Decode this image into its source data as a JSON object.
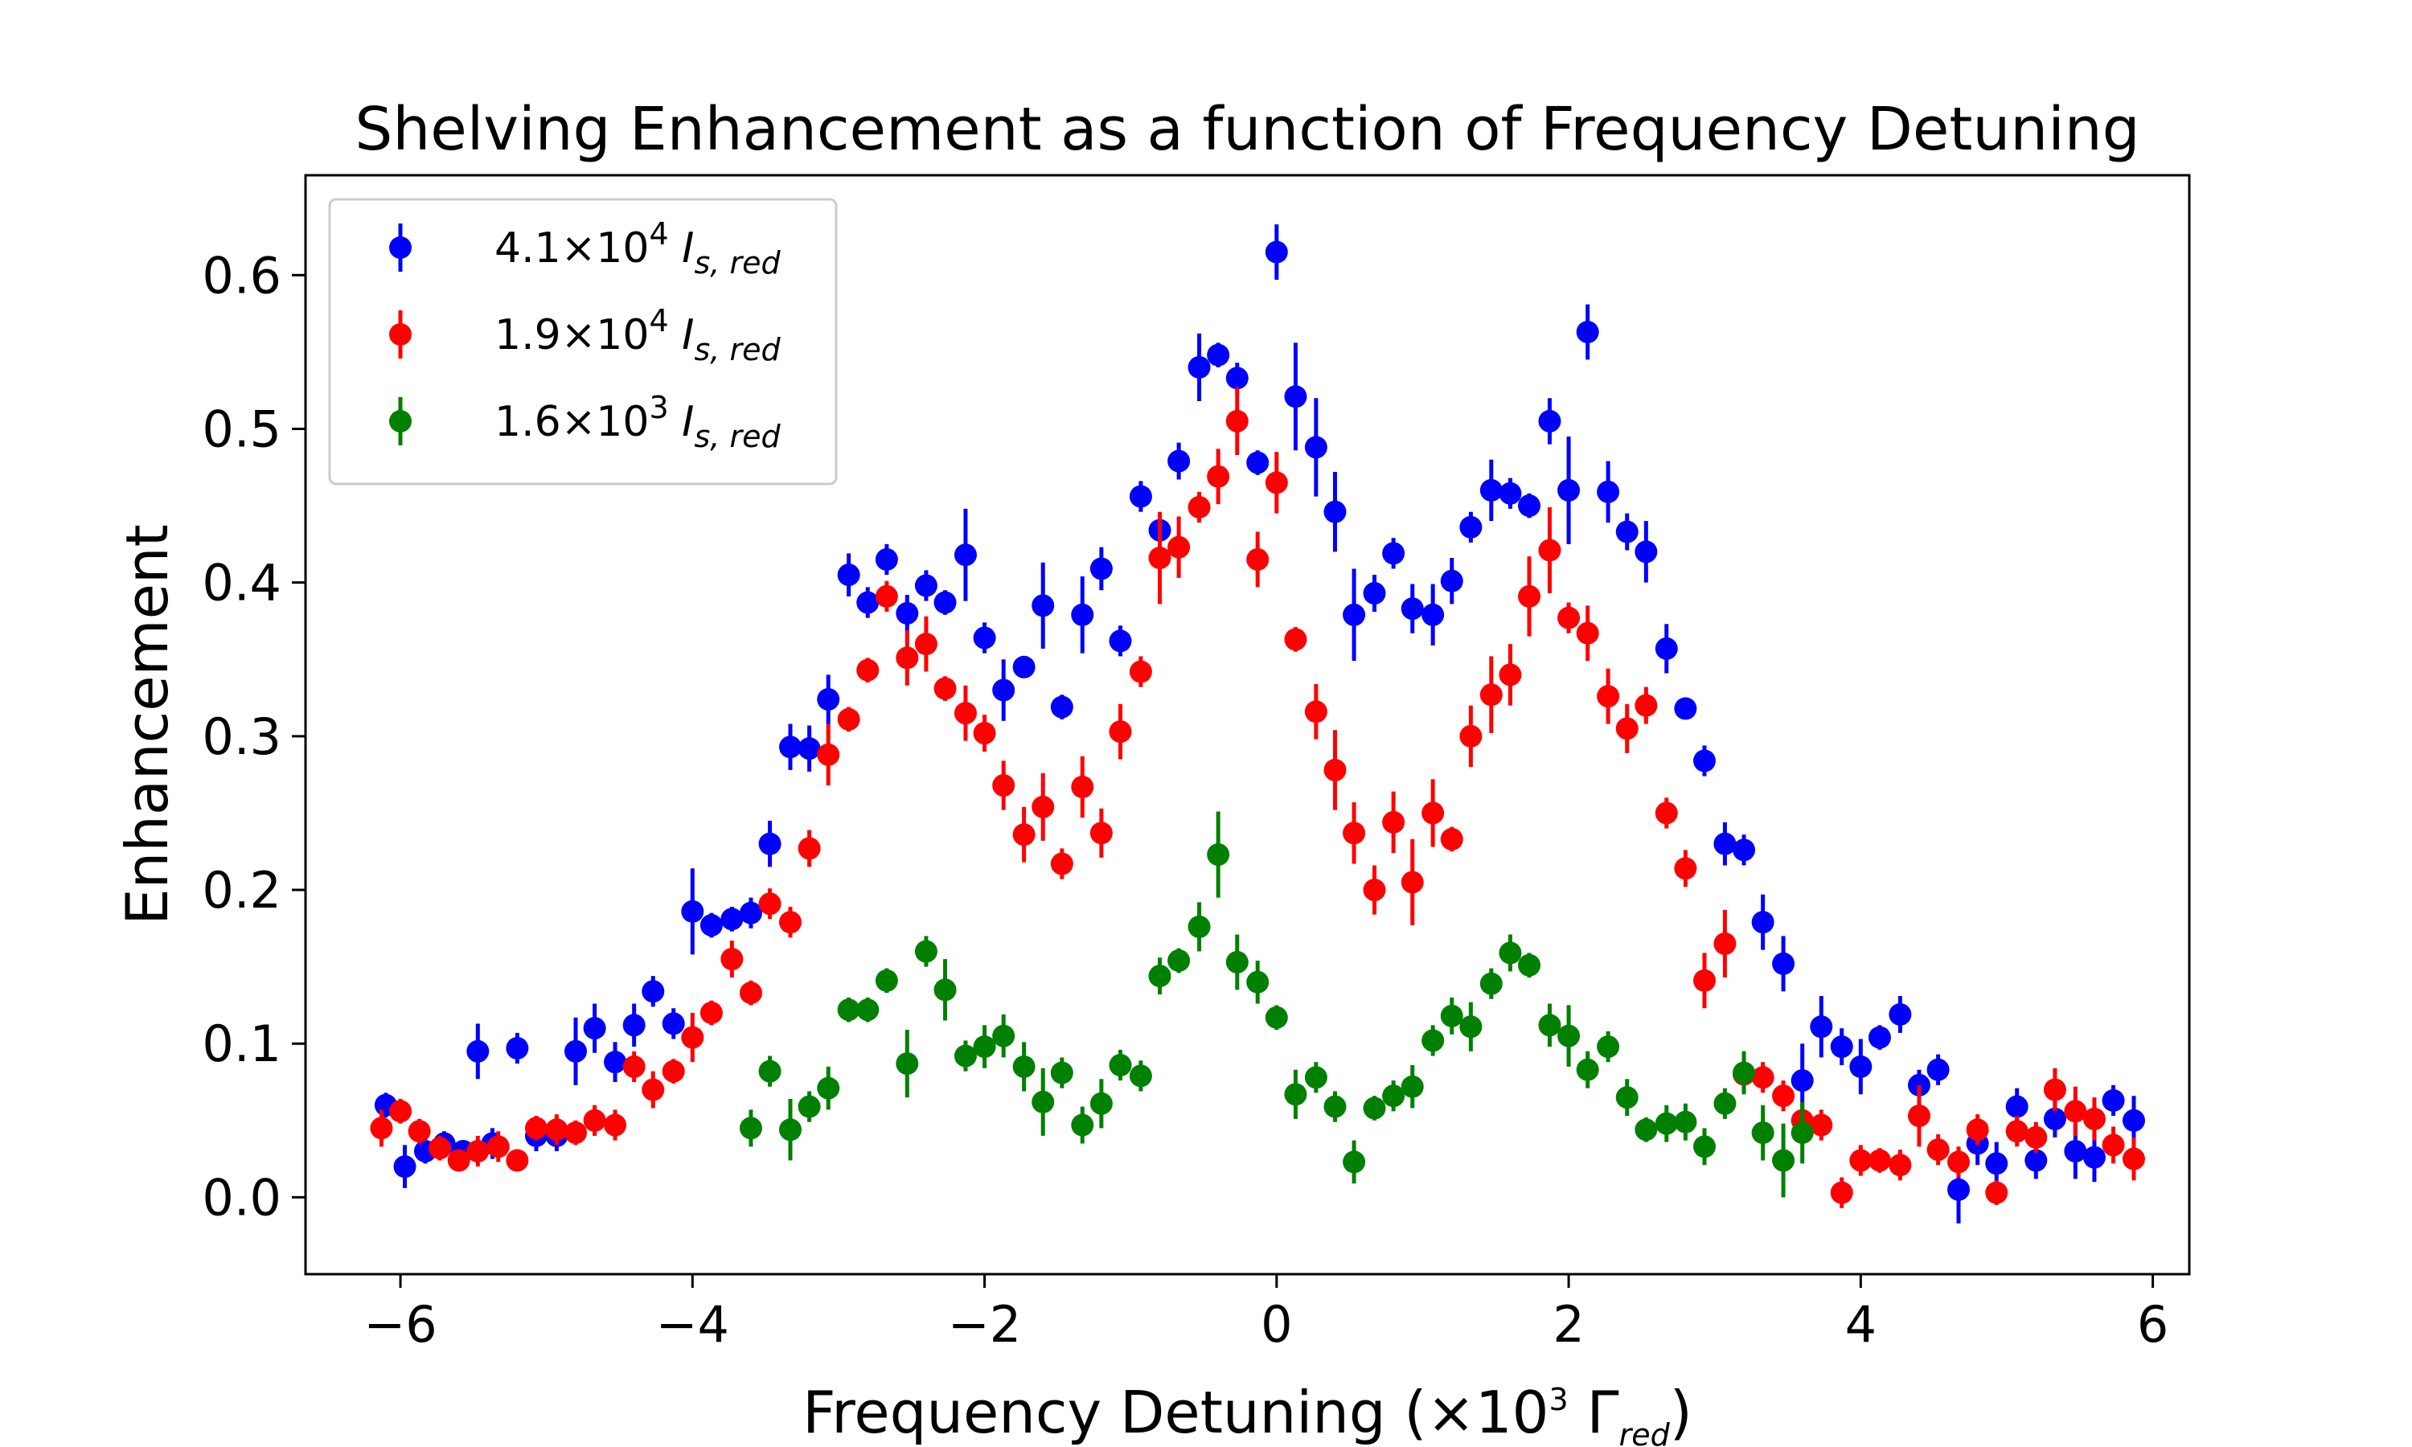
{
  "chart_data": {
    "type": "scatter",
    "title": "Shelving Enhancement as a function of Frequency Detuning",
    "xlabel": {
      "main": "Frequency Detuning (×10",
      "exp": "3",
      "gamma": " Γ",
      "sub": "red",
      "close": ")"
    },
    "ylabel": "Enhancement",
    "xlim": [
      -6.65,
      6.25
    ],
    "ylim": [
      -0.05,
      0.665
    ],
    "xticks": [
      -6,
      -4,
      -2,
      0,
      2,
      4,
      6
    ],
    "xtick_labels": [
      "−6",
      "−4",
      "−2",
      "0",
      "2",
      "4",
      "6"
    ],
    "yticks": [
      0.0,
      0.1,
      0.2,
      0.3,
      0.4,
      0.5,
      0.6
    ],
    "ytick_labels": [
      "0.0",
      "0.1",
      "0.2",
      "0.3",
      "0.4",
      "0.5",
      "0.6"
    ],
    "grid": false,
    "legend_position": "top-left",
    "series": [
      {
        "name": "4.1×10^4 I_s,red",
        "legend": {
          "mant": "4.1×10",
          "exp": "4",
          "sym": "I",
          "sub": "s, red"
        },
        "color": "#0000ff",
        "x": [
          -6.1,
          -5.97,
          -5.83,
          -5.7,
          -5.57,
          -5.47,
          -5.37,
          -5.2,
          -5.07,
          -4.93,
          -4.8,
          -4.67,
          -4.53,
          -4.4,
          -4.27,
          -4.13,
          -4.0,
          -3.87,
          -3.73,
          -3.6,
          -3.47,
          -3.33,
          -3.2,
          -3.07,
          -2.93,
          -2.8,
          -2.67,
          -2.53,
          -2.4,
          -2.27,
          -2.13,
          -2.0,
          -1.87,
          -1.73,
          -1.6,
          -1.47,
          -1.33,
          -1.2,
          -1.07,
          -0.93,
          -0.8,
          -0.67,
          -0.53,
          -0.4,
          -0.27,
          -0.13,
          0.0,
          0.13,
          0.27,
          0.4,
          0.53,
          0.67,
          0.8,
          0.93,
          1.07,
          1.2,
          1.33,
          1.47,
          1.6,
          1.73,
          1.87,
          2.0,
          2.13,
          2.27,
          2.4,
          2.53,
          2.67,
          2.8,
          2.93,
          3.07,
          3.2,
          3.33,
          3.47,
          3.6,
          3.73,
          3.87,
          4.0,
          4.13,
          4.27,
          4.4,
          4.53,
          4.67,
          4.8,
          4.93,
          5.07,
          5.2,
          5.33,
          5.47,
          5.6,
          5.73,
          5.87
        ],
        "y": [
          0.06,
          0.02,
          0.03,
          0.035,
          0.03,
          0.095,
          0.035,
          0.097,
          0.04,
          0.04,
          0.095,
          0.11,
          0.088,
          0.112,
          0.134,
          0.113,
          0.186,
          0.177,
          0.181,
          0.185,
          0.23,
          0.293,
          0.292,
          0.324,
          0.405,
          0.387,
          0.415,
          0.38,
          0.398,
          0.387,
          0.418,
          0.364,
          0.33,
          0.345,
          0.385,
          0.319,
          0.379,
          0.409,
          0.362,
          0.456,
          0.434,
          0.479,
          0.54,
          0.548,
          0.533,
          0.478,
          0.615,
          0.521,
          0.488,
          0.446,
          0.379,
          0.393,
          0.419,
          0.383,
          0.379,
          0.401,
          0.436,
          0.46,
          0.458,
          0.45,
          0.505,
          0.46,
          0.563,
          0.459,
          0.433,
          0.42,
          0.357,
          0.318,
          0.284,
          0.23,
          0.226,
          0.179,
          0.152,
          0.076,
          0.111,
          0.098,
          0.085,
          0.104,
          0.119,
          0.073,
          0.083,
          0.005,
          0.035,
          0.022,
          0.059,
          0.024,
          0.051,
          0.03,
          0.026,
          0.063,
          0.05
        ],
        "err": [
          0.008,
          0.014,
          0.008,
          0.008,
          0.007,
          0.018,
          0.01,
          0.01,
          0.01,
          0.01,
          0.022,
          0.016,
          0.013,
          0.014,
          0.01,
          0.01,
          0.028,
          0.008,
          0.008,
          0.01,
          0.015,
          0.015,
          0.015,
          0.016,
          0.014,
          0.01,
          0.01,
          0.012,
          0.01,
          0.008,
          0.03,
          0.01,
          0.02,
          0.007,
          0.028,
          0.008,
          0.025,
          0.014,
          0.01,
          0.01,
          0.01,
          0.012,
          0.022,
          0.008,
          0.01,
          0.008,
          0.018,
          0.035,
          0.032,
          0.026,
          0.03,
          0.012,
          0.01,
          0.016,
          0.02,
          0.015,
          0.01,
          0.02,
          0.01,
          0.008,
          0.015,
          0.035,
          0.018,
          0.02,
          0.012,
          0.02,
          0.016,
          0.007,
          0.01,
          0.014,
          0.01,
          0.018,
          0.018,
          0.024,
          0.02,
          0.012,
          0.018,
          0.008,
          0.012,
          0.01,
          0.01,
          0.022,
          0.014,
          0.014,
          0.012,
          0.012,
          0.012,
          0.018,
          0.016,
          0.01,
          0.016
        ]
      },
      {
        "name": "1.9×10^4 I_s,red",
        "legend": {
          "mant": "1.9×10",
          "exp": "4",
          "sym": "I",
          "sub": "s, red"
        },
        "color": "#ff0000",
        "x": [
          -6.13,
          -6.0,
          -5.87,
          -5.73,
          -5.6,
          -5.47,
          -5.33,
          -5.2,
          -5.07,
          -4.93,
          -4.8,
          -4.67,
          -4.53,
          -4.4,
          -4.27,
          -4.13,
          -4.0,
          -3.87,
          -3.73,
          -3.6,
          -3.47,
          -3.33,
          -3.2,
          -3.07,
          -2.93,
          -2.8,
          -2.67,
          -2.53,
          -2.4,
          -2.27,
          -2.13,
          -2.0,
          -1.87,
          -1.73,
          -1.6,
          -1.47,
          -1.33,
          -1.2,
          -1.07,
          -0.93,
          -0.8,
          -0.67,
          -0.53,
          -0.4,
          -0.27,
          -0.13,
          0.0,
          0.13,
          0.27,
          0.4,
          0.53,
          0.67,
          0.8,
          0.93,
          1.07,
          1.2,
          1.33,
          1.47,
          1.6,
          1.73,
          1.87,
          2.0,
          2.13,
          2.27,
          2.4,
          2.53,
          2.67,
          2.8,
          2.93,
          3.07,
          3.2,
          3.33,
          3.47,
          3.6,
          3.73,
          3.87,
          4.0,
          4.13,
          4.27,
          4.4,
          4.53,
          4.67,
          4.8,
          4.93,
          5.07,
          5.2,
          5.33,
          5.47,
          5.6,
          5.73,
          5.87
        ],
        "y": [
          0.045,
          0.056,
          0.043,
          0.032,
          0.024,
          0.03,
          0.033,
          0.024,
          0.045,
          0.044,
          0.042,
          0.05,
          0.047,
          0.085,
          0.07,
          0.082,
          0.104,
          0.12,
          0.155,
          0.133,
          0.191,
          0.179,
          0.227,
          0.288,
          0.311,
          0.343,
          0.391,
          0.351,
          0.36,
          0.331,
          0.315,
          0.302,
          0.268,
          0.236,
          0.254,
          0.217,
          0.267,
          0.237,
          0.303,
          0.342,
          0.416,
          0.423,
          0.449,
          0.469,
          0.505,
          0.415,
          0.465,
          0.363,
          0.316,
          0.278,
          0.237,
          0.2,
          0.244,
          0.205,
          0.25,
          0.233,
          0.3,
          0.327,
          0.34,
          0.391,
          0.421,
          0.377,
          0.367,
          0.326,
          0.305,
          0.32,
          0.25,
          0.214,
          0.141,
          0.165,
          0.08,
          0.078,
          0.066,
          0.05,
          0.047,
          0.003,
          0.024,
          0.024,
          0.021,
          0.053,
          0.031,
          0.023,
          0.044,
          0.003,
          0.043,
          0.039,
          0.07,
          0.056,
          0.051,
          0.034,
          0.025
        ],
        "err": [
          0.012,
          0.008,
          0.008,
          0.008,
          0.007,
          0.01,
          0.01,
          0.007,
          0.008,
          0.01,
          0.008,
          0.01,
          0.01,
          0.01,
          0.012,
          0.008,
          0.016,
          0.008,
          0.012,
          0.008,
          0.01,
          0.01,
          0.012,
          0.02,
          0.008,
          0.008,
          0.01,
          0.018,
          0.018,
          0.008,
          0.018,
          0.012,
          0.016,
          0.018,
          0.022,
          0.01,
          0.02,
          0.016,
          0.018,
          0.01,
          0.03,
          0.02,
          0.01,
          0.018,
          0.022,
          0.018,
          0.02,
          0.008,
          0.018,
          0.026,
          0.02,
          0.016,
          0.02,
          0.028,
          0.022,
          0.008,
          0.02,
          0.025,
          0.02,
          0.026,
          0.028,
          0.01,
          0.018,
          0.018,
          0.016,
          0.012,
          0.01,
          0.012,
          0.018,
          0.022,
          0.012,
          0.01,
          0.01,
          0.008,
          0.01,
          0.01,
          0.01,
          0.008,
          0.01,
          0.02,
          0.01,
          0.01,
          0.01,
          0.008,
          0.01,
          0.01,
          0.014,
          0.016,
          0.014,
          0.012,
          0.014
        ]
      },
      {
        "name": "1.6×10^3 I_s,red",
        "legend": {
          "mant": "1.6×10",
          "exp": "3",
          "sym": "I",
          "sub": "s, red"
        },
        "color": "#008000",
        "x": [
          -3.6,
          -3.47,
          -3.33,
          -3.2,
          -3.07,
          -2.93,
          -2.8,
          -2.67,
          -2.53,
          -2.4,
          -2.27,
          -2.13,
          -2.0,
          -1.87,
          -1.73,
          -1.6,
          -1.47,
          -1.33,
          -1.2,
          -1.07,
          -0.93,
          -0.8,
          -0.67,
          -0.53,
          -0.4,
          -0.27,
          -0.13,
          0.0,
          0.13,
          0.27,
          0.4,
          0.53,
          0.67,
          0.8,
          0.93,
          1.07,
          1.2,
          1.33,
          1.47,
          1.6,
          1.73,
          1.87,
          2.0,
          2.13,
          2.27,
          2.4,
          2.53,
          2.67,
          2.8,
          2.93,
          3.07,
          3.2,
          3.33,
          3.47,
          3.6
        ],
        "y": [
          0.045,
          0.082,
          0.044,
          0.059,
          0.071,
          0.122,
          0.122,
          0.141,
          0.087,
          0.16,
          0.135,
          0.092,
          0.098,
          0.105,
          0.085,
          0.062,
          0.081,
          0.047,
          0.061,
          0.086,
          0.079,
          0.144,
          0.154,
          0.176,
          0.223,
          0.153,
          0.14,
          0.117,
          0.067,
          0.078,
          0.059,
          0.023,
          0.058,
          0.066,
          0.072,
          0.102,
          0.118,
          0.111,
          0.139,
          0.159,
          0.151,
          0.112,
          0.105,
          0.083,
          0.098,
          0.065,
          0.044,
          0.048,
          0.049,
          0.033,
          0.061,
          0.081,
          0.042,
          0.024,
          0.042
        ],
        "err": [
          0.012,
          0.01,
          0.02,
          0.01,
          0.014,
          0.008,
          0.008,
          0.008,
          0.022,
          0.01,
          0.02,
          0.01,
          0.014,
          0.014,
          0.016,
          0.022,
          0.01,
          0.012,
          0.016,
          0.01,
          0.01,
          0.012,
          0.008,
          0.016,
          0.028,
          0.018,
          0.014,
          0.008,
          0.016,
          0.01,
          0.01,
          0.014,
          0.008,
          0.01,
          0.014,
          0.01,
          0.012,
          0.016,
          0.01,
          0.012,
          0.008,
          0.014,
          0.02,
          0.012,
          0.01,
          0.012,
          0.008,
          0.012,
          0.012,
          0.012,
          0.01,
          0.014,
          0.018,
          0.024,
          0.02
        ]
      }
    ]
  }
}
